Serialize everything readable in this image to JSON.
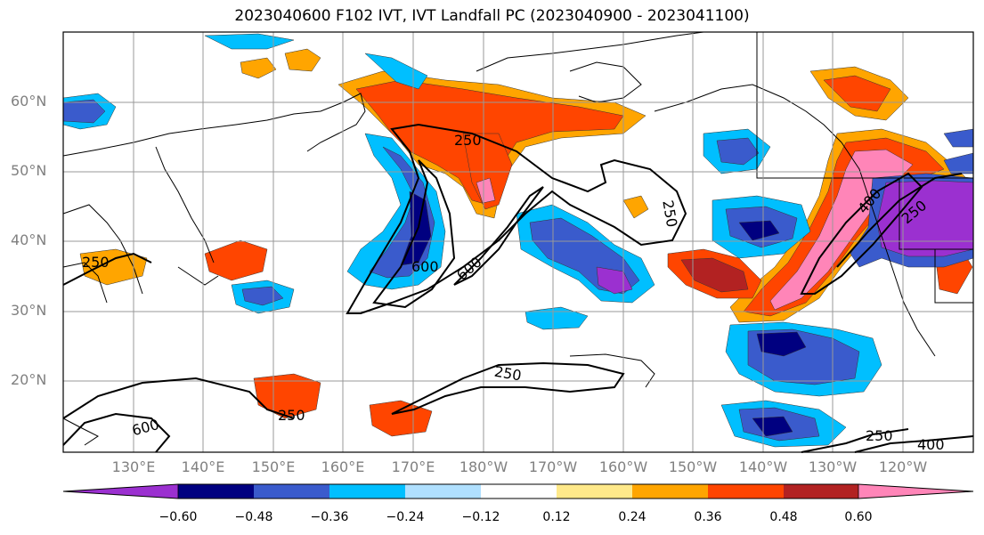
{
  "title": "2023040600 F102 IVT, IVT Landfall PC (2023040900 - 2023041100)",
  "lat_labels": [
    "60°N",
    "50°N",
    "40°N",
    "30°N",
    "20°N"
  ],
  "lon_labels": [
    "130°E",
    "140°E",
    "150°E",
    "160°E",
    "170°E",
    "180°W",
    "170°W",
    "160°W",
    "150°W",
    "140°W",
    "130°W",
    "120°W"
  ],
  "colorbar": {
    "ticks": [
      "−0.60",
      "−0.48",
      "−0.36",
      "−0.24",
      "−0.12",
      "0.12",
      "0.24",
      "0.36",
      "0.48",
      "0.60"
    ],
    "colors": [
      "#9b30d0",
      "#000080",
      "#3a5bcc",
      "#00bfff",
      "#b0e0ff",
      "#ffffff",
      "#ffe98a",
      "#ffa500",
      "#ff4500",
      "#b22222",
      "#ff85b8"
    ]
  },
  "contour_labels": [
    "250",
    "250",
    "250",
    "250",
    "250",
    "250",
    "600",
    "600",
    "600",
    "400",
    "400",
    "250"
  ]
}
